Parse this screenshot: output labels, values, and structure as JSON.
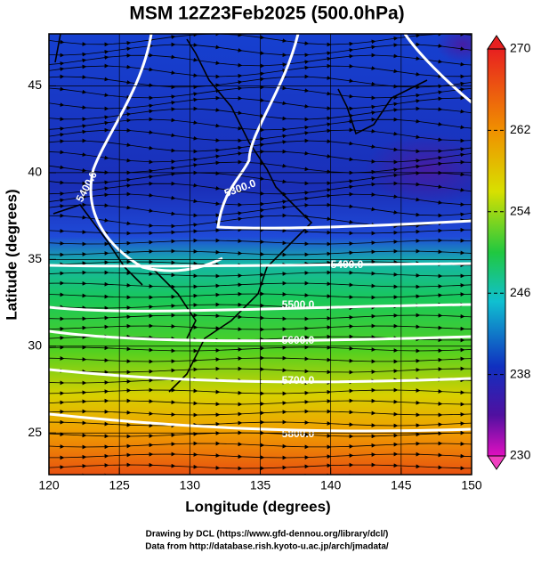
{
  "chart_data": {
    "type": "map",
    "title": "MSM 12Z23Feb2025 (500.0hPa)",
    "x_label": "Longitude (degrees)",
    "y_label": "Latitude  (degrees)",
    "xlim": [
      120,
      150
    ],
    "ylim": [
      22.6,
      48
    ],
    "xticks": [
      120,
      125,
      130,
      135,
      140,
      145,
      150
    ],
    "yticks": [
      25,
      30,
      35,
      40,
      45
    ],
    "grid": true,
    "colorbar": {
      "lim": [
        230,
        270
      ],
      "ticks": [
        230,
        238,
        246,
        254,
        262,
        270
      ]
    },
    "contour_labels": [
      "5400.0",
      "5300.0",
      "5400.0",
      "5500.0",
      "5600.0",
      "5700.0",
      "5800.0"
    ]
  },
  "footer": [
    "Drawing by DCL (https://www.gfd-dennou.org/library/dcl/)",
    "Data from http://database.rish.kyoto-u.ac.jp/arch/jmadata/"
  ]
}
